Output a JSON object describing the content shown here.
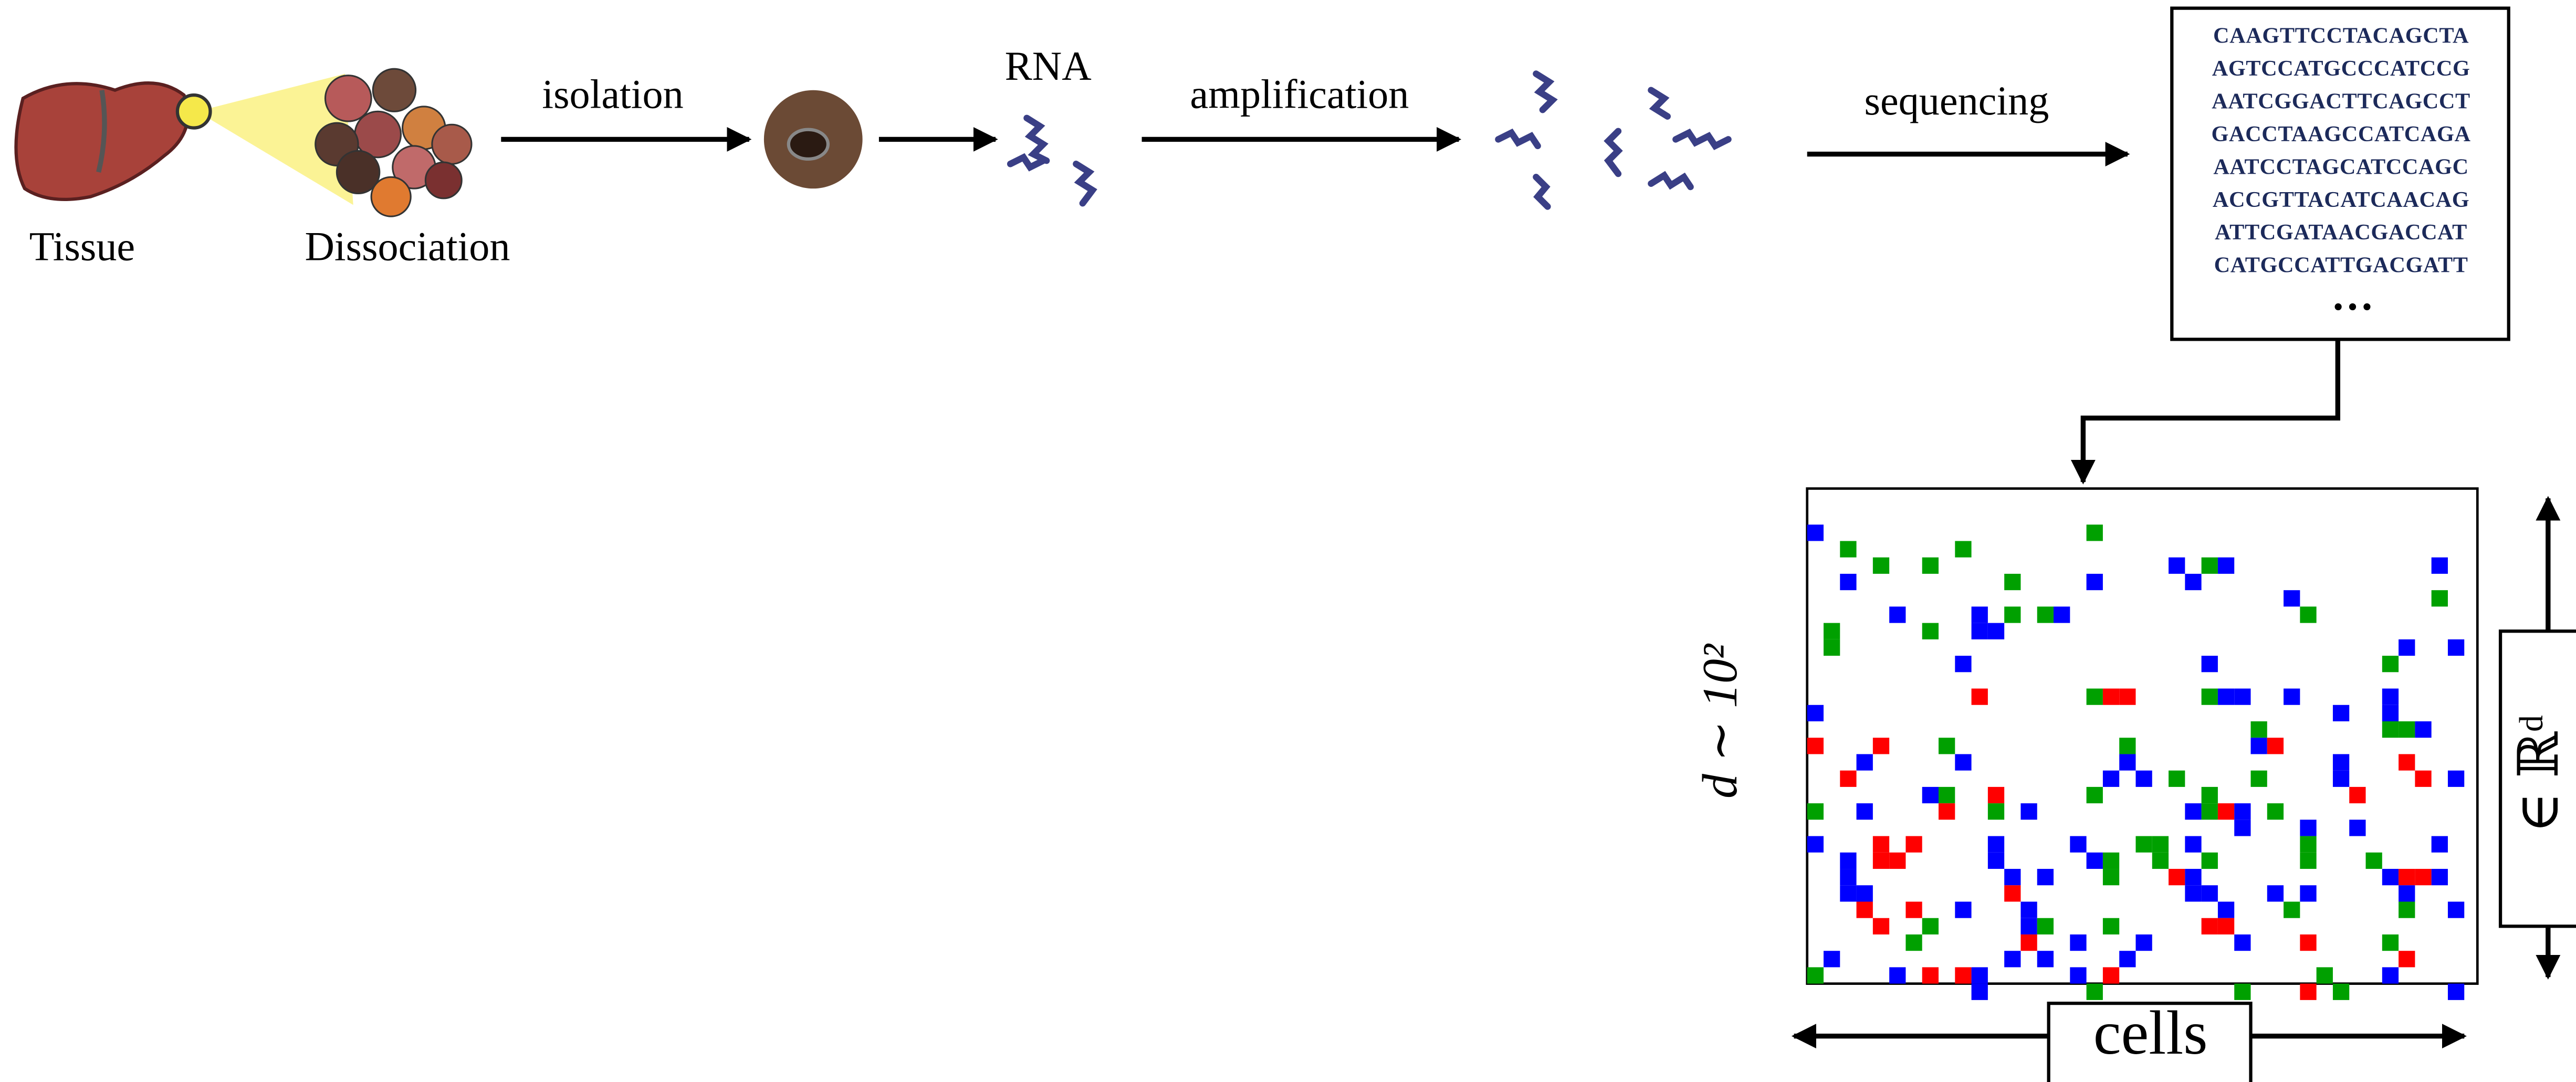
{
  "labels": {
    "tissue": "Tissue",
    "dissociation": "Dissociation",
    "isolation": "isolation",
    "rna": "RNA",
    "amplification": "amplification",
    "sequencing": "sequencing"
  },
  "sequences": [
    "CAAGTTCCTACAGCTA",
    "AGTCCATGCCCATCCG",
    "AATCGGACTTCAGCCT",
    "GACCTAAGCCATCAGA",
    "AATCCTAGCATCCAGC",
    "ACCGTTACATCAACAG",
    "ATTCGATAACGACCAT",
    "CATGCCATTGACGATT"
  ],
  "ellipsis": "…",
  "matrix": {
    "rows_label": "d ∼ 10²",
    "space_label": "∈ ℝᵈ",
    "cols_label": "cells"
  }
}
